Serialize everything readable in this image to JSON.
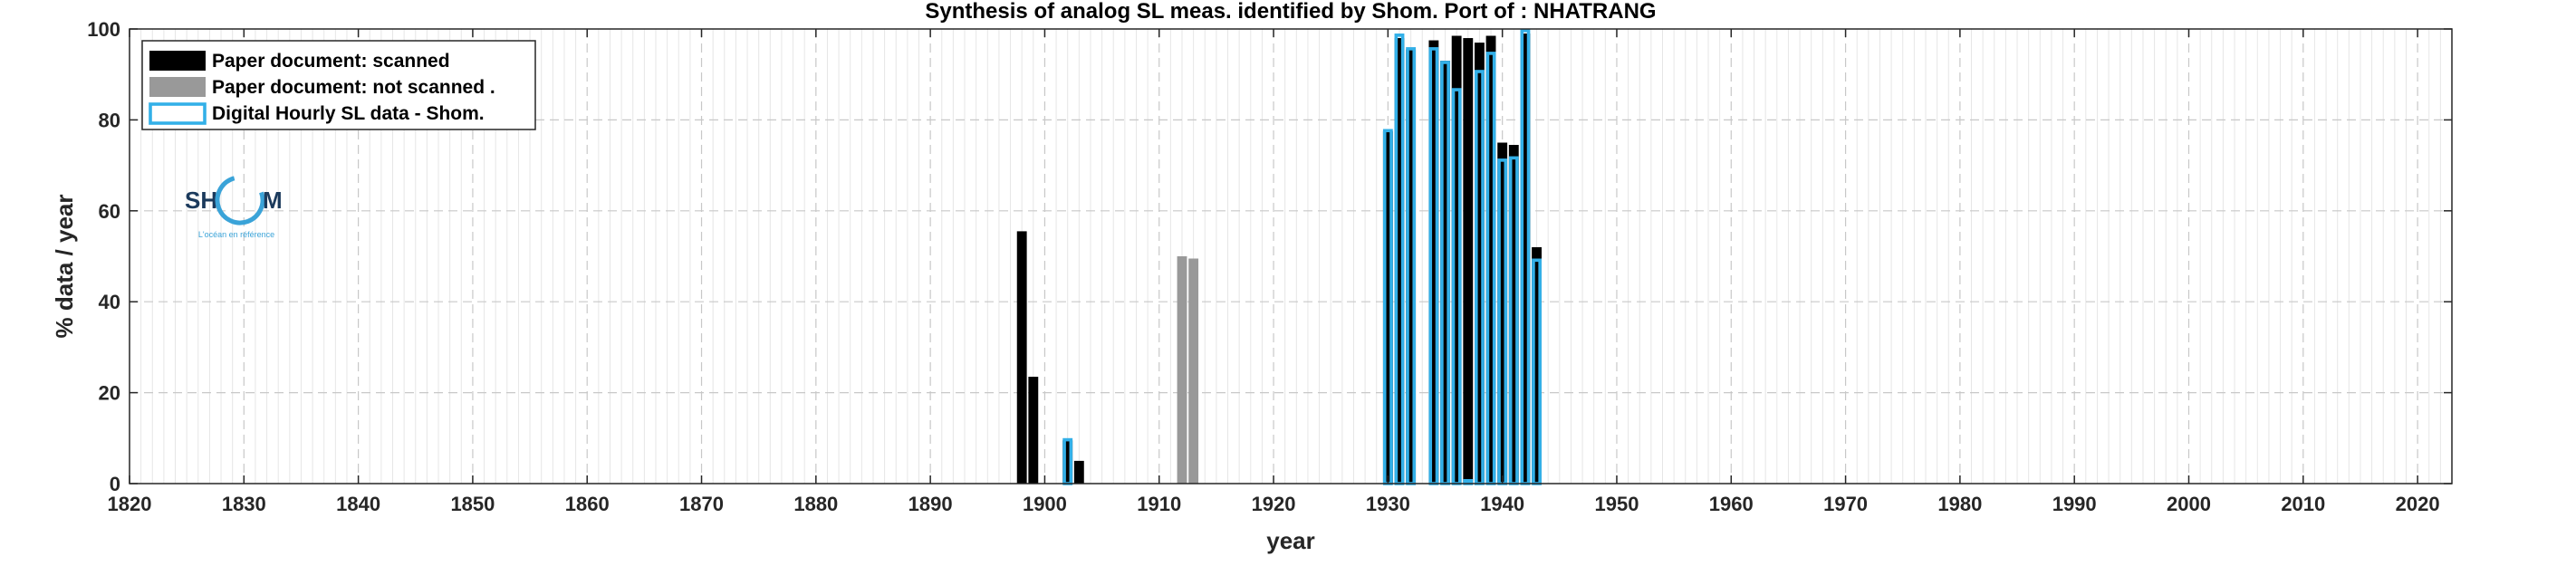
{
  "chart_data": {
    "type": "bar",
    "title": "Synthesis of analog SL meas. identified by Shom. Port of : NHATRANG",
    "xlabel": "year",
    "ylabel": "% data / year",
    "xlim": [
      1820,
      2023
    ],
    "ylim": [
      0,
      100
    ],
    "x_ticks": [
      1820,
      1830,
      1840,
      1850,
      1860,
      1870,
      1880,
      1890,
      1900,
      1910,
      1920,
      1930,
      1940,
      1950,
      1960,
      1970,
      1980,
      1990,
      2000,
      2010,
      2020
    ],
    "y_ticks": [
      0,
      20,
      40,
      60,
      80,
      100
    ],
    "grid": true,
    "legend_position": "top-left",
    "series": [
      {
        "name": "Paper document: scanned",
        "style": "filled",
        "color": "#000000",
        "points": [
          {
            "x": 1898,
            "y": 55.5
          },
          {
            "x": 1899,
            "y": 23.5
          },
          {
            "x": 1902,
            "y": 9.5
          },
          {
            "x": 1903,
            "y": 5.0
          },
          {
            "x": 1930,
            "y": 77.5
          },
          {
            "x": 1931,
            "y": 98.0
          },
          {
            "x": 1932,
            "y": 95.5
          },
          {
            "x": 1933,
            "y": 0.0
          },
          {
            "x": 1934,
            "y": 97.5
          },
          {
            "x": 1935,
            "y": 93.0
          },
          {
            "x": 1936,
            "y": 98.5
          },
          {
            "x": 1937,
            "y": 98.0
          },
          {
            "x": 1938,
            "y": 97.0
          },
          {
            "x": 1939,
            "y": 98.5
          },
          {
            "x": 1940,
            "y": 75.0
          },
          {
            "x": 1941,
            "y": 74.5
          },
          {
            "x": 1942,
            "y": 99.0
          },
          {
            "x": 1943,
            "y": 52.0
          }
        ]
      },
      {
        "name": "Paper document: not scanned",
        "style": "filled",
        "color": "#999999",
        "points": [
          {
            "x": 1912,
            "y": 50.0
          },
          {
            "x": 1913,
            "y": 49.5
          }
        ]
      },
      {
        "name": "Digital Hourly SL data - Shom.",
        "style": "outline",
        "color": "#33b0e8",
        "points": [
          {
            "x": 1902,
            "y": 10.0
          },
          {
            "x": 1930,
            "y": 78.0
          },
          {
            "x": 1931,
            "y": 99.0
          },
          {
            "x": 1932,
            "y": 96.0
          },
          {
            "x": 1933,
            "y": 0.0
          },
          {
            "x": 1934,
            "y": 96.0
          },
          {
            "x": 1935,
            "y": 93.0
          },
          {
            "x": 1936,
            "y": 87.0
          },
          {
            "x": 1937,
            "y": 1.0
          },
          {
            "x": 1938,
            "y": 91.0
          },
          {
            "x": 1939,
            "y": 95.0
          },
          {
            "x": 1940,
            "y": 71.5
          },
          {
            "x": 1941,
            "y": 72.0
          },
          {
            "x": 1942,
            "y": 100.0
          },
          {
            "x": 1943,
            "y": 49.5
          }
        ]
      }
    ]
  },
  "legend": {
    "items": [
      {
        "label": "Paper document: scanned",
        "swatch": "filled",
        "color": "#000000"
      },
      {
        "label": "Paper document: not scanned   .",
        "swatch": "filled",
        "color": "#999999"
      },
      {
        "label": "Digital Hourly SL data - Shom.",
        "swatch": "outline",
        "color": "#33b0e8"
      }
    ]
  },
  "logo": {
    "text_left": "SH",
    "text_right": "M",
    "tagline": "L'océan en référence",
    "ring_color": "#3aa3d8",
    "text_color": "#1b3a5c",
    "icon": "shom-logo-icon"
  }
}
